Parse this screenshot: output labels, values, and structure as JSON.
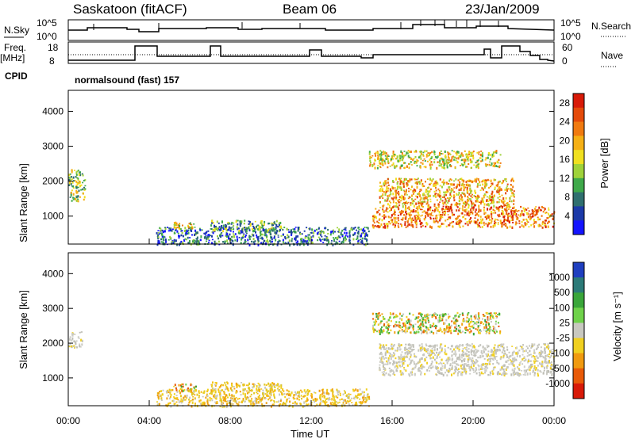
{
  "header": {
    "title": "Saskatoon (fitACF)",
    "beam": "Beam 06",
    "date": "23/Jan/2009"
  },
  "status_panels": {
    "nsky_label": "N.Sky",
    "nsky_ticks": [
      "10^5",
      "10^0"
    ],
    "nsearch_label": "N.Search",
    "nsearch_ticks": [
      "10^5",
      "10^0"
    ],
    "freq_label": "Freq.",
    "freq_unit": "[MHz]",
    "freq_ticks": [
      18,
      8
    ],
    "nave_label": "Nave",
    "nave_ticks": [
      60,
      0
    ],
    "cpid_label": "CPID",
    "cpid_text": "normalsound (fast) 157"
  },
  "chart_data": [
    {
      "type": "heatmap",
      "title": "",
      "xlabel": "",
      "ylabel": "Slant Range [km]",
      "xlim": [
        "00:00",
        "24:00"
      ],
      "ylim": [
        200,
        4600
      ],
      "y_ticks": [
        1000,
        2000,
        3000,
        4000
      ],
      "colorbar": {
        "label": "Power [dB]",
        "range": [
          0,
          30
        ],
        "ticks": [
          4,
          8,
          12,
          16,
          20,
          24,
          28
        ],
        "colors": [
          "#1414ff",
          "#1c3aa8",
          "#2f6f6f",
          "#3fa94a",
          "#9fd23a",
          "#f0e020",
          "#f5b016",
          "#f07a10",
          "#e44a0a",
          "#d81a08"
        ]
      },
      "regions": [
        {
          "start": "00:00",
          "end": "00:50",
          "range": [
            1450,
            2350
          ],
          "value": 14
        },
        {
          "start": "04:20",
          "end": "14:50",
          "range": [
            200,
            700
          ],
          "value": 8
        },
        {
          "start": "05:10",
          "end": "06:20",
          "range": [
            650,
            850
          ],
          "value": 16
        },
        {
          "start": "07:00",
          "end": "10:30",
          "range": [
            600,
            900
          ],
          "value": 10
        },
        {
          "start": "14:50",
          "end": "21:20",
          "range": [
            2400,
            2900
          ],
          "value": 18
        },
        {
          "start": "15:20",
          "end": "22:00",
          "range": [
            1300,
            2100
          ],
          "value": 20
        },
        {
          "start": "15:00",
          "end": "24:00",
          "range": [
            700,
            1300
          ],
          "value": 24
        }
      ]
    },
    {
      "type": "heatmap",
      "title": "",
      "xlabel": "Time UT",
      "ylabel": "Slant Range [km]",
      "xlim": [
        "00:00",
        "24:00"
      ],
      "x_ticks": [
        "00:00",
        "04:00",
        "08:00",
        "12:00",
        "16:00",
        "20:00",
        "00:00"
      ],
      "ylim": [
        200,
        4600
      ],
      "y_ticks": [
        1000,
        2000,
        3000,
        4000
      ],
      "colorbar": {
        "label": "Velocity [m s⁻¹]",
        "ticks": [
          "1000",
          "500",
          "100",
          "25",
          "-25",
          "-100",
          "-500",
          "-1000"
        ],
        "colors": [
          "#1f3fbf",
          "#2c7a78",
          "#3aa63a",
          "#6fd24a",
          "#c8c8c0",
          "#f0d020",
          "#f09a10",
          "#e85a08",
          "#d81a08"
        ]
      },
      "regions": [
        {
          "start": "00:00",
          "end": "00:40",
          "range": [
            1900,
            2350
          ],
          "value": "ground"
        },
        {
          "start": "04:20",
          "end": "14:50",
          "range": [
            200,
            700
          ],
          "value": "low-negative"
        },
        {
          "start": "05:10",
          "end": "06:20",
          "range": [
            650,
            850
          ],
          "value": "mixed"
        },
        {
          "start": "07:00",
          "end": "10:30",
          "range": [
            650,
            900
          ],
          "value": "low-negative"
        },
        {
          "start": "15:00",
          "end": "21:20",
          "range": [
            2300,
            2900
          ],
          "value": "mixed"
        },
        {
          "start": "15:20",
          "end": "24:00",
          "range": [
            1100,
            2000
          ],
          "value": "ground"
        }
      ]
    }
  ]
}
